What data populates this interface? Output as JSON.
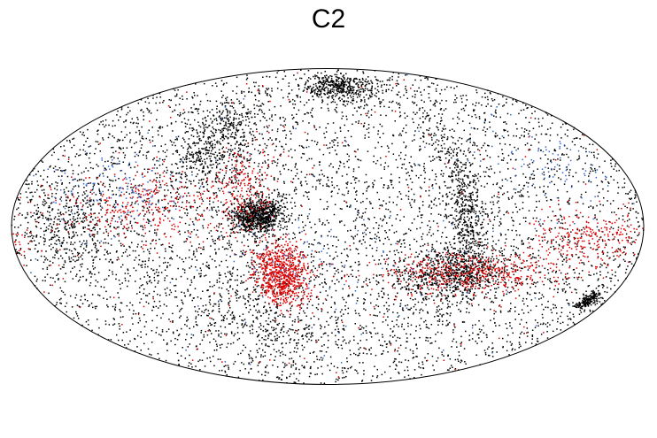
{
  "chart_data": {
    "type": "scatter",
    "title": "C2",
    "projection": "mollweide",
    "grid": false,
    "legend": "none",
    "xlabel": "",
    "ylabel": "",
    "xlim": [
      -180,
      180
    ],
    "ylim": [
      -90,
      90
    ],
    "series": [
      {
        "color": "#000000",
        "approx_points": 9000,
        "background_fraction": 0.55,
        "clusters": [
          {
            "x": -40,
            "y": 5,
            "spread": [
              7,
              4
            ],
            "weight": 0.1
          },
          {
            "x": -75,
            "y": 40,
            "spread": [
              15,
              12
            ],
            "weight": 0.06
          },
          {
            "x": 80,
            "y": 5,
            "spread": [
              6,
              22
            ],
            "weight": 0.07
          },
          {
            "x": 75,
            "y": -22,
            "spread": [
              18,
              6
            ],
            "weight": 0.07
          },
          {
            "x": 15,
            "y": 72,
            "spread": [
              25,
              5
            ],
            "weight": 0.05
          },
          {
            "x": -150,
            "y": 0,
            "spread": [
              15,
              12
            ],
            "weight": 0.04
          },
          {
            "x": 168,
            "y": -35,
            "spread": [
              3,
              2
            ],
            "weight": 0.02
          },
          {
            "x": -50,
            "y": -40,
            "spread": [
              30,
              15
            ],
            "weight": 0.04
          }
        ]
      },
      {
        "color": "#e00000",
        "approx_points": 2200,
        "background_fraction": 0.08,
        "clusters": [
          {
            "x": -28,
            "y": -22,
            "spread": [
              8,
              7
            ],
            "weight": 0.35
          },
          {
            "x": 85,
            "y": -22,
            "spread": [
              30,
              5
            ],
            "weight": 0.22
          },
          {
            "x": 150,
            "y": -5,
            "spread": [
              18,
              6
            ],
            "weight": 0.12
          },
          {
            "x": -110,
            "y": 10,
            "spread": [
              25,
              8
            ],
            "weight": 0.13
          },
          {
            "x": -50,
            "y": 15,
            "spread": [
              10,
              12
            ],
            "weight": 0.1
          }
        ]
      },
      {
        "color": "#3366cc",
        "approx_points": 380,
        "background_fraction": 0.25,
        "clusters": [
          {
            "x": -125,
            "y": 15,
            "spread": [
              22,
              8
            ],
            "weight": 0.35
          },
          {
            "x": -15,
            "y": -15,
            "spread": [
              30,
              10
            ],
            "weight": 0.2
          },
          {
            "x": 140,
            "y": 30,
            "spread": [
              20,
              10
            ],
            "weight": 0.2
          }
        ]
      }
    ]
  }
}
